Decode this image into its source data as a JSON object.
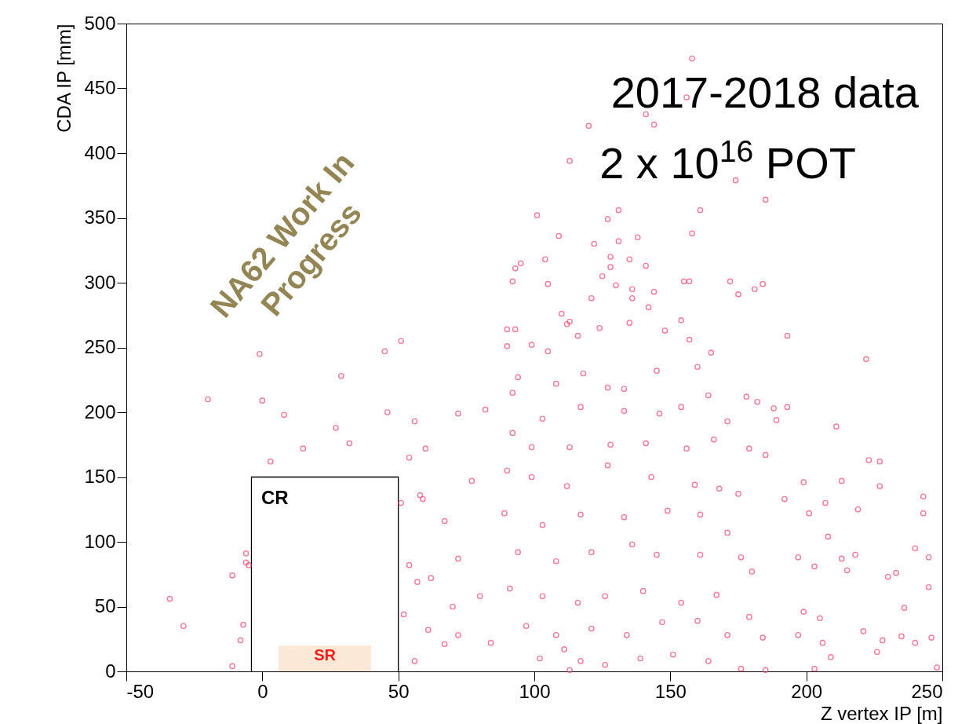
{
  "chart_data": {
    "type": "scatter",
    "xlabel": "Z vertex IP [m]",
    "ylabel": "CDA IP [mm]",
    "xlim": [
      -50,
      250
    ],
    "xticks": [
      -50,
      0,
      50,
      100,
      150,
      200,
      250
    ],
    "ylim": [
      0,
      500
    ],
    "yticks": [
      0,
      50,
      100,
      150,
      200,
      250,
      300,
      350,
      400,
      450,
      500
    ],
    "annotations": [
      "2017-2018 data",
      "2 x 10$^{16}$ POT",
      "NA62 Work In Progress",
      "CR",
      {
        "text": "SR",
        "x": 23,
        "y": 12
      }
    ],
    "series": [
      {
        "type": "scatter",
        "marker": "circle",
        "color": "#f0466e",
        "x": [
          -34,
          -29,
          -20,
          -1,
          0,
          3,
          8,
          15,
          27,
          29,
          32,
          45,
          46,
          51,
          -6,
          -6,
          -11,
          -7,
          -8,
          -11,
          -5,
          51,
          54,
          59,
          57,
          52,
          56,
          61,
          70,
          67,
          158,
          156,
          141,
          144,
          120,
          113,
          174,
          185,
          101,
          131,
          127,
          161,
          158,
          109,
          122,
          131,
          138,
          95,
          93,
          104,
          92,
          105,
          128,
          135,
          141,
          128,
          125,
          130,
          136,
          136,
          144,
          142,
          121,
          155,
          157,
          172,
          181,
          184,
          175,
          110,
          112,
          113,
          90,
          93,
          124,
          135,
          148,
          154,
          193,
          222,
          90,
          99,
          105,
          116,
          157,
          165,
          178,
          182,
          188,
          193,
          189,
          171,
          211,
          179,
          185,
          223,
          227,
          199,
          213,
          227,
          243,
          243,
          192,
          201,
          207,
          219,
          208,
          218,
          240,
          245,
          213,
          197,
          203,
          215,
          230,
          233,
          245,
          199,
          205,
          236,
          197,
          221,
          228,
          235,
          240,
          246,
          226,
          248,
          206,
          209,
          203,
          94,
          108,
          118,
          127,
          133,
          145,
          160,
          164,
          154,
          146,
          133,
          117,
          103,
          92,
          99,
          113,
          128,
          141,
          156,
          166,
          90,
          99,
          112,
          127,
          143,
          159,
          168,
          175,
          103,
          117,
          133,
          149,
          161,
          171,
          94,
          108,
          121,
          136,
          145,
          161,
          176,
          180,
          91,
          103,
          116,
          126,
          140,
          154,
          167,
          179,
          97,
          108,
          121,
          134,
          147,
          160,
          171,
          184,
          102,
          111,
          117,
          126,
          139,
          151,
          164,
          176,
          185,
          113,
          58,
          72,
          62,
          80,
          72,
          84,
          89,
          67,
          77,
          82,
          92,
          72,
          56,
          54,
          60
        ],
        "values": [
          56,
          35,
          210,
          245,
          209,
          162,
          198,
          172,
          188,
          228,
          176,
          247,
          200,
          255,
          91,
          84,
          74,
          36,
          24,
          4,
          82,
          130,
          82,
          133,
          69,
          44,
          8,
          32,
          50,
          21,
          473,
          443,
          430,
          422,
          421,
          394,
          379,
          364,
          352,
          356,
          349,
          356,
          338,
          336,
          330,
          332,
          335,
          315,
          311,
          318,
          301,
          299,
          320,
          318,
          313,
          312,
          305,
          298,
          295,
          288,
          293,
          281,
          288,
          301,
          301,
          301,
          295,
          299,
          291,
          276,
          268,
          270,
          264,
          264,
          265,
          269,
          263,
          271,
          259,
          241,
          251,
          252,
          247,
          259,
          256,
          246,
          212,
          208,
          203,
          204,
          194,
          193,
          189,
          172,
          167,
          163,
          162,
          146,
          147,
          143,
          135,
          122,
          133,
          122,
          130,
          125,
          104,
          90,
          95,
          88,
          87,
          88,
          81,
          78,
          73,
          76,
          65,
          46,
          41,
          49,
          28,
          31,
          24,
          27,
          22,
          26,
          15,
          3,
          22,
          11,
          2,
          227,
          222,
          230,
          219,
          218,
          232,
          235,
          213,
          204,
          199,
          201,
          204,
          195,
          184,
          173,
          173,
          175,
          176,
          172,
          179,
          155,
          150,
          143,
          159,
          150,
          144,
          141,
          137,
          113,
          121,
          119,
          124,
          121,
          107,
          92,
          85,
          92,
          98,
          90,
          90,
          88,
          77,
          64,
          58,
          53,
          58,
          62,
          53,
          59,
          42,
          35,
          28,
          33,
          28,
          38,
          39,
          28,
          26,
          10,
          17,
          8,
          5,
          10,
          13,
          8,
          2,
          1,
          1,
          136,
          87,
          72,
          58,
          28,
          22,
          122,
          116,
          147,
          202,
          215,
          199,
          193,
          165,
          172
        ]
      },
      {
        "type": "line",
        "color": "#000000",
        "x": [
          -4,
          -4,
          50,
          50
        ],
        "values": [
          0,
          150,
          150,
          0
        ]
      },
      {
        "type": "area",
        "color": "#fce8d6",
        "x": [
          6,
          40
        ],
        "values": [
          20,
          20
        ]
      }
    ]
  }
}
